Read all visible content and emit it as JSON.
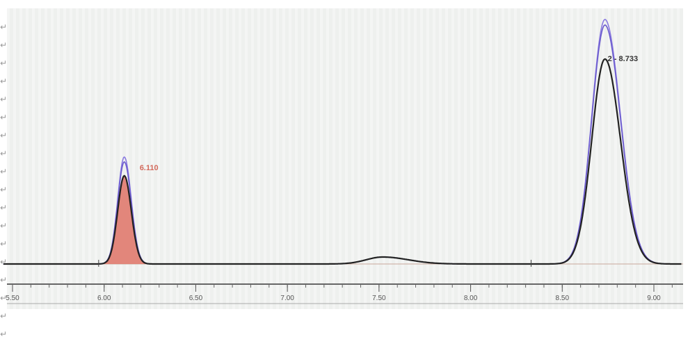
{
  "chart_data": {
    "type": "line",
    "title": "",
    "xlabel": "",
    "ylabel": "",
    "xlim": [
      5.47,
      9.15
    ],
    "ylim": [
      -10,
      370
    ],
    "x_ticks": [
      "5.50",
      "6.00",
      "6.50",
      "7.00",
      "7.50",
      "8.00",
      "8.50",
      "9.00"
    ],
    "grid": false,
    "peaks": [
      {
        "label": "6.110",
        "rt": 6.11,
        "color": "#c0504d",
        "filled": true
      },
      {
        "label": "2 - 8.733",
        "rt": 8.733,
        "color": "#333333",
        "filled": false
      }
    ],
    "series": [
      {
        "color": "#222222",
        "peak_heights": [
          127,
          295
        ],
        "minor_hump": 10
      },
      {
        "color": "#6a5acd",
        "peak_heights": [
          147,
          344
        ],
        "minor_hump": 10
      },
      {
        "color": "#8a7ae0",
        "peak_heights": [
          154,
          352
        ],
        "minor_hump": 10
      }
    ],
    "colors": {
      "peak_fill": "#e07a6e",
      "background": "#eef0ee",
      "axis": "#555555"
    }
  },
  "margin_marks": [
    "↵",
    "↵",
    "↵",
    "↵",
    "↵",
    "↵",
    "↵",
    "↵",
    "↵",
    "↵",
    "↵",
    "↵",
    "↵",
    "↵",
    "↵",
    "↵",
    "↵",
    "↵"
  ]
}
